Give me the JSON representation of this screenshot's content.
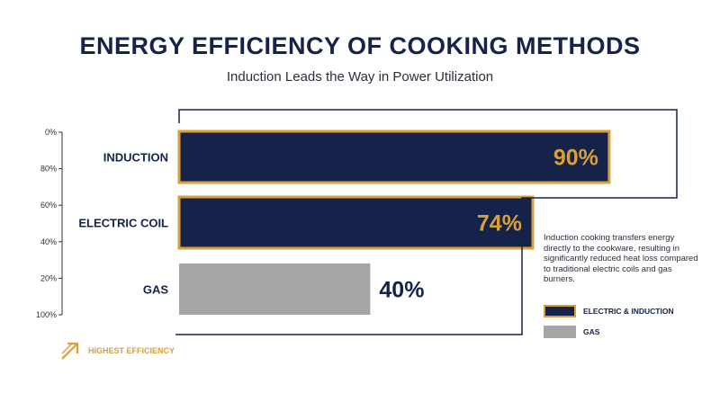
{
  "chart_data": {
    "type": "bar",
    "orientation": "horizontal",
    "title": "ENERGY EFFICIENCY OF COOKING METHODS",
    "subtitle": "Induction Leads the Way in Power Utilization",
    "categories": [
      "INDUCTION",
      "ELECTRIC COIL",
      "GAS"
    ],
    "values": [
      90,
      74,
      40
    ],
    "value_labels": [
      "90%",
      "74%",
      "40%"
    ],
    "value_axis_ticks": [
      "0%",
      "80%",
      "60%",
      "40%",
      "20%",
      "100%"
    ],
    "xlim": [
      0,
      100
    ],
    "grid": false,
    "legend_position": "bottom-right",
    "legend": [
      {
        "label": "ELECTRIC & INDUCTION",
        "color": "#15234a",
        "border": "#d9a03a"
      },
      {
        "label": "GAS",
        "color": "#a6a6a6"
      }
    ],
    "annotation": "Induction cooking transfers energy directly to the cookware, resulting in significantly reduced heat loss compared to traditional electric coils and gas burners.",
    "badge": {
      "label": "HIGHEST EFFICIENCY",
      "icon": "arrow-up-right-icon"
    },
    "colors": {
      "navy": "#15234a",
      "gold": "#d9a03a",
      "gray": "#a6a6a6",
      "text_dark": "#2a2f3a"
    }
  }
}
